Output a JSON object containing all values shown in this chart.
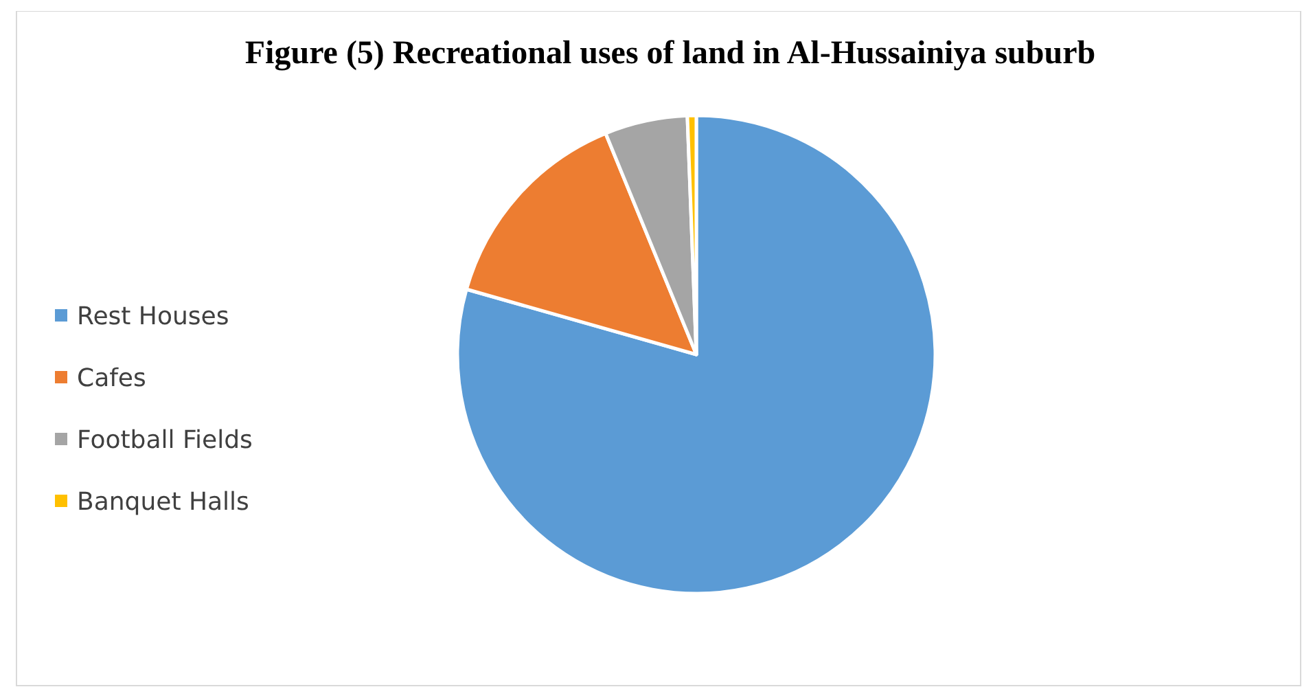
{
  "chart_data": {
    "type": "pie",
    "title": "Figure (5) Recreational uses of land in Al-Hussainiya suburb",
    "categories": [
      "Rest Houses",
      "Cafes",
      "Football Fields",
      "Banquet Halls"
    ],
    "values": [
      79.4,
      14.4,
      5.6,
      0.6
    ],
    "colors": [
      "#5b9bd5",
      "#ed7d31",
      "#a5a5a5",
      "#ffc000"
    ],
    "legend": "left"
  }
}
